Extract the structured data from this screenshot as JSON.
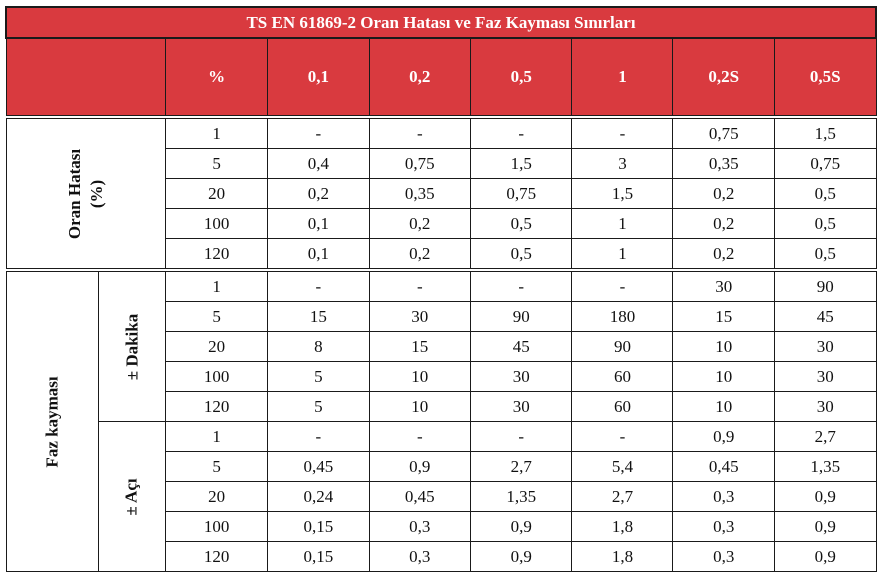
{
  "title": "TS EN 61869-2 Oran Hatası ve Faz Kayması Sınırları",
  "header": {
    "percent": "%",
    "classes": [
      "0,1",
      "0,2",
      "0,5",
      "1",
      "0,2S",
      "0,5S"
    ]
  },
  "groups": {
    "oran": {
      "label_line1": "Oran Hatası",
      "label_line2": "(%)"
    },
    "faz": {
      "label": "Faz kayması",
      "dakika": "± Dakika",
      "aci": "± Açı"
    }
  },
  "oran_rows": [
    {
      "p": "1",
      "v": [
        "-",
        "-",
        "-",
        "-",
        "0,75",
        "1,5"
      ]
    },
    {
      "p": "5",
      "v": [
        "0,4",
        "0,75",
        "1,5",
        "3",
        "0,35",
        "0,75"
      ]
    },
    {
      "p": "20",
      "v": [
        "0,2",
        "0,35",
        "0,75",
        "1,5",
        "0,2",
        "0,5"
      ]
    },
    {
      "p": "100",
      "v": [
        "0,1",
        "0,2",
        "0,5",
        "1",
        "0,2",
        "0,5"
      ]
    },
    {
      "p": "120",
      "v": [
        "0,1",
        "0,2",
        "0,5",
        "1",
        "0,2",
        "0,5"
      ]
    }
  ],
  "dakika_rows": [
    {
      "p": "1",
      "v": [
        "-",
        "-",
        "-",
        "-",
        "30",
        "90"
      ]
    },
    {
      "p": "5",
      "v": [
        "15",
        "30",
        "90",
        "180",
        "15",
        "45"
      ]
    },
    {
      "p": "20",
      "v": [
        "8",
        "15",
        "45",
        "90",
        "10",
        "30"
      ]
    },
    {
      "p": "100",
      "v": [
        "5",
        "10",
        "30",
        "60",
        "10",
        "30"
      ]
    },
    {
      "p": "120",
      "v": [
        "5",
        "10",
        "30",
        "60",
        "10",
        "30"
      ]
    }
  ],
  "aci_rows": [
    {
      "p": "1",
      "v": [
        "-",
        "-",
        "-",
        "-",
        "0,9",
        "2,7"
      ]
    },
    {
      "p": "5",
      "v": [
        "0,45",
        "0,9",
        "2,7",
        "5,4",
        "0,45",
        "1,35"
      ]
    },
    {
      "p": "20",
      "v": [
        "0,24",
        "0,45",
        "1,35",
        "2,7",
        "0,3",
        "0,9"
      ]
    },
    {
      "p": "100",
      "v": [
        "0,15",
        "0,3",
        "0,9",
        "1,8",
        "0,3",
        "0,9"
      ]
    },
    {
      "p": "120",
      "v": [
        "0,15",
        "0,3",
        "0,9",
        "1,8",
        "0,3",
        "0,9"
      ]
    }
  ]
}
